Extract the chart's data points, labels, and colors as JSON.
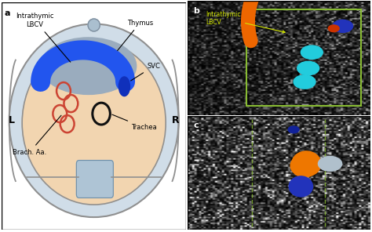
{
  "fig_width": 4.74,
  "fig_height": 2.96,
  "dpi": 100,
  "bg_color": "#ffffff",
  "panel_a": {
    "label": "a",
    "body_fill_color": "#f2d5b0",
    "body_edge_color": "#909090",
    "skin_layer_color": "#d0dde8",
    "thymus_color": "#9aacbe",
    "lbcv_color": "#2255ee",
    "svc_color": "#1030bb",
    "trachea_ring_color": "#111111",
    "brach_ring_color": "#cc4433",
    "spine_color": "#aec4d5",
    "top_vessel_color": "#aabfcf",
    "label_L": "L",
    "label_R": "R",
    "label_intrathymic": "Intrathymic\nLBCV",
    "label_thymus": "Thymus",
    "label_svc": "SVC",
    "label_trachea": "Trachea",
    "label_brach": "Brach. Aa."
  },
  "panel_b": {
    "label": "b",
    "label_text": "Intrathymic\nLBCV",
    "label_color": "#d4e800",
    "box_color": "#88bb33",
    "arch_color": "#ee6600",
    "blue_dot_color": "#2233bb",
    "cyan_color": "#22ccdd",
    "small_red_color": "#bb2200"
  },
  "panel_c": {
    "label": "c",
    "line_color": "#88bb33",
    "arch_color": "#ee4400",
    "orange_blob_color": "#ee7700",
    "blue_tip_color": "#112299",
    "blue_lower_color": "#2233bb",
    "white_vessel_color": "#b0c0cc"
  }
}
